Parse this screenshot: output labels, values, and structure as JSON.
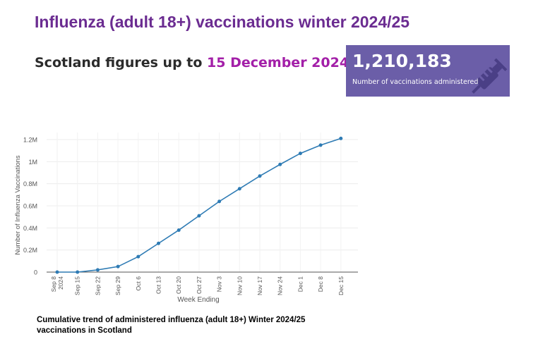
{
  "title": "Influenza (adult 18+) vaccinations winter 2024/25",
  "subtitle": {
    "prefix": "Scotland figures up to ",
    "date": "15 December 2024:"
  },
  "kpi": {
    "value": "1,210,183",
    "label": "Number of vaccinations administered",
    "icon": "syringe-icon"
  },
  "caption": {
    "line1": "Cumulative trend of administered influenza (adult 18+) Winter 2024/25",
    "line2": "vaccinations in  Scotland"
  },
  "colors": {
    "title": "#6b2c91",
    "date_highlight": "#a31fa8",
    "kpi_background": "#6b5ea8",
    "line": "#2e7bb4"
  },
  "chart_data": {
    "type": "line",
    "title": "",
    "xlabel": "Week Ending",
    "ylabel": "Number of Influenza Vaccinations",
    "categories": [
      "Sep 8\n2024",
      "Sep 15",
      "Sep 22",
      "Sep 29",
      "Oct 6",
      "Oct 13",
      "Oct 20",
      "Oct 27",
      "Nov 3",
      "Nov 10",
      "Nov 17",
      "Nov 24",
      "Dec 1",
      "Dec 8",
      "Dec 15"
    ],
    "values": [
      0,
      0,
      20000,
      50000,
      140000,
      260000,
      380000,
      510000,
      640000,
      755000,
      870000,
      975000,
      1075000,
      1150000,
      1210183
    ],
    "ylim": [
      0,
      1200000
    ],
    "yticks": [
      0,
      200000,
      400000,
      600000,
      800000,
      1000000,
      1200000
    ],
    "ytick_labels": [
      "0",
      "0.2M",
      "0.4M",
      "0.6M",
      "0.8M",
      "1M",
      "1.2M"
    ],
    "grid": true,
    "legend": "none"
  }
}
